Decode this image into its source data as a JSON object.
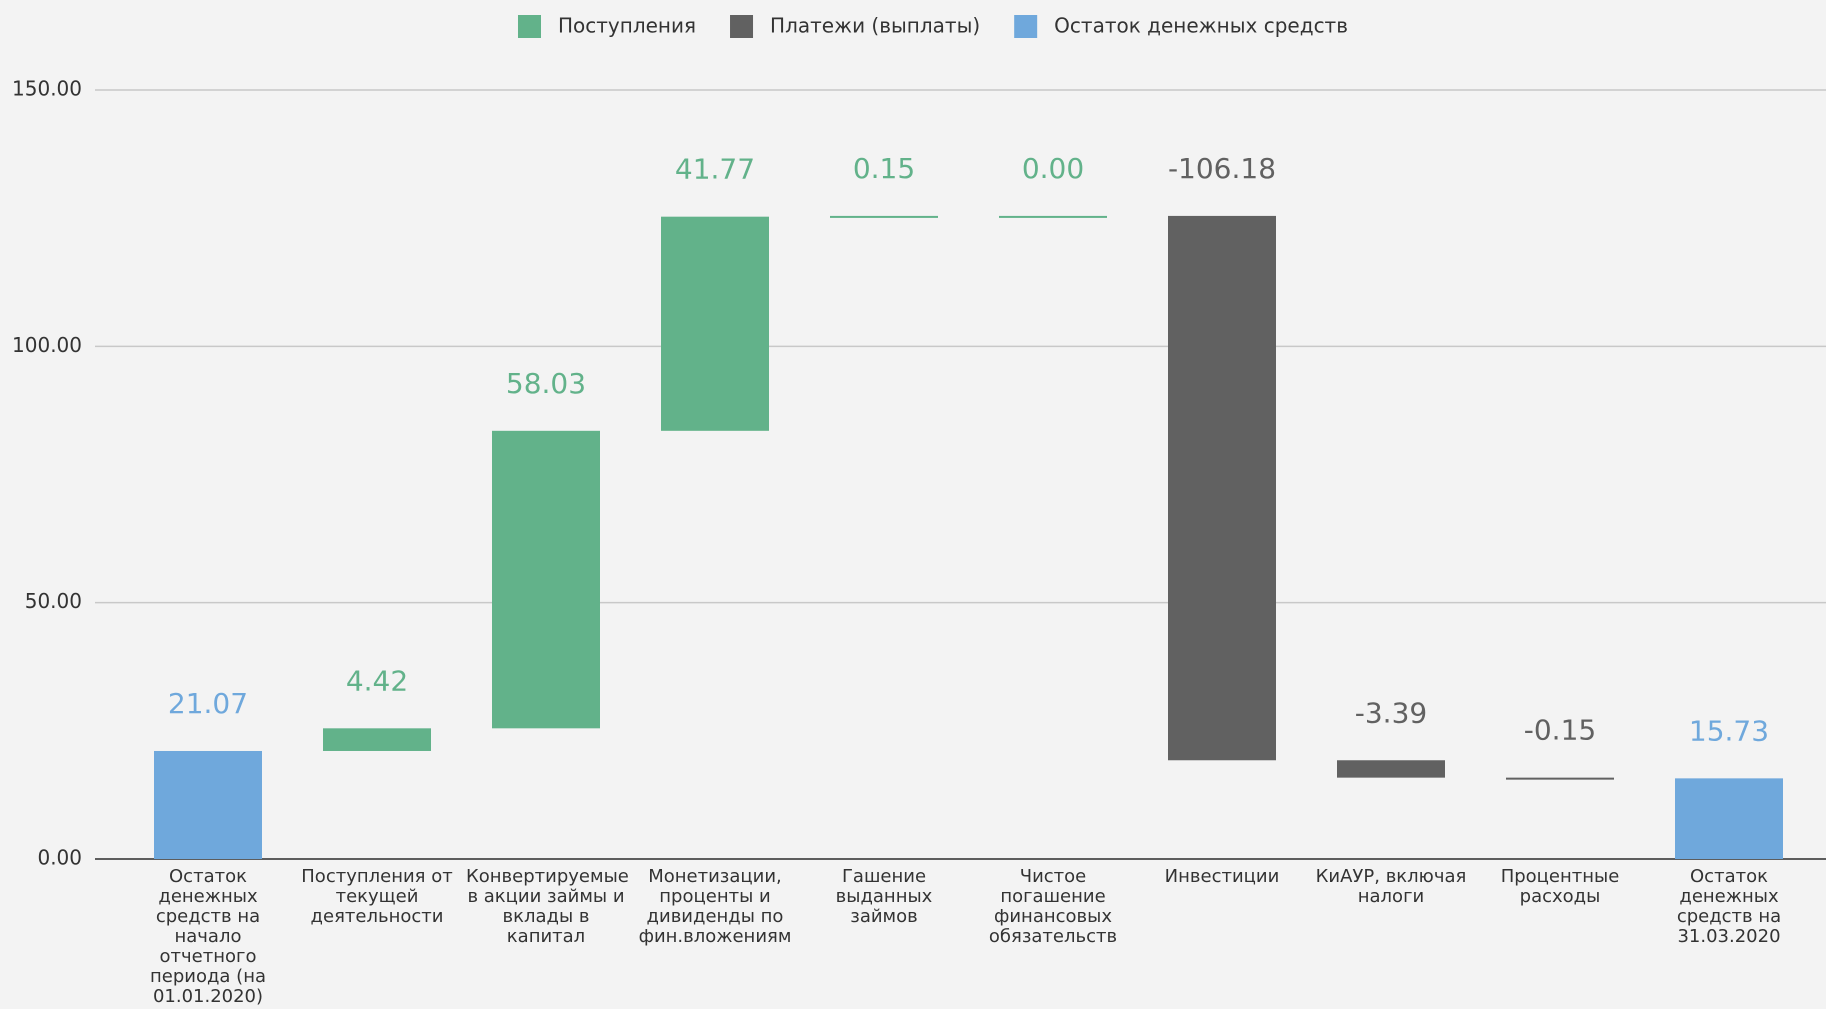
{
  "chart_data": {
    "type": "waterfall",
    "categories": [
      "Остаток денежных средств на начало отчетного периода (на 01.01.2020)",
      "Поступления от текущей деятельности",
      "Конвертируемые в акции займы и вклады в капитал",
      "Монетизации, проценты и дивиденды по фин.вложениям",
      "Гашение выданных займов",
      "Чистое погашение финансовых обязательств",
      "Инвестиции",
      "КиАУР, включая налоги",
      "Процентные расходы",
      "Остаток денежных средств на 31.03.2020"
    ],
    "series": [
      {
        "name": "Поступления",
        "color": "#62b28a",
        "values": [
          null,
          4.42,
          58.03,
          41.77,
          0.15,
          0.0,
          null,
          null,
          null,
          null
        ],
        "value_labels": [
          null,
          "4.42",
          "58.03",
          "41.77",
          "0.15",
          "0.00",
          null,
          null,
          null,
          null
        ]
      },
      {
        "name": "Платежи (выплаты)",
        "color": "#616161",
        "values": [
          null,
          null,
          null,
          null,
          null,
          null,
          -106.18,
          -3.39,
          -0.15,
          null
        ],
        "value_labels": [
          null,
          null,
          null,
          null,
          null,
          null,
          "-106.18",
          "-3.39",
          "-0.15",
          null
        ]
      },
      {
        "name": "Остаток денежных средств",
        "color": "#6fa8dc",
        "total": true,
        "values": [
          21.07,
          null,
          null,
          null,
          null,
          null,
          null,
          null,
          null,
          15.73
        ],
        "value_labels": [
          "21.07",
          null,
          null,
          null,
          null,
          null,
          null,
          null,
          null,
          "15.73"
        ]
      }
    ],
    "ylim": [
      0,
      150
    ],
    "yticks": [
      {
        "value": 0,
        "label": "0.00"
      },
      {
        "value": 50,
        "label": "50.00"
      },
      {
        "value": 100,
        "label": "100.00"
      },
      {
        "value": 150,
        "label": "150.00"
      }
    ],
    "grid": true,
    "legend": "top"
  }
}
